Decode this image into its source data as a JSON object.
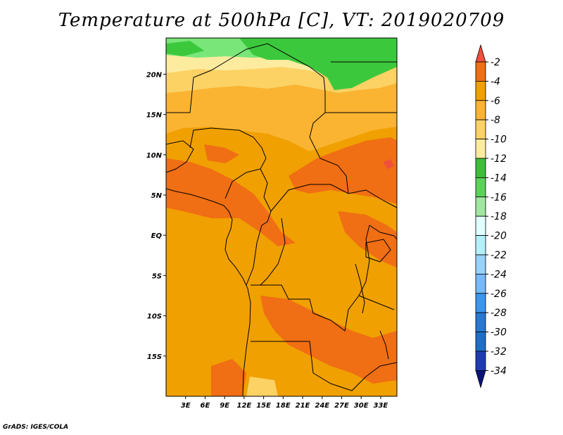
{
  "title": "Temperature at 500hPa [C], VT: 2019020709",
  "footer": "GrADS: IGES/COLA",
  "map": {
    "lat_range": [
      -20,
      24.5
    ],
    "lon_range": [
      0,
      35.5
    ],
    "lat_ticks": [
      {
        "value": 20,
        "label": "20N"
      },
      {
        "value": 15,
        "label": "15N"
      },
      {
        "value": 10,
        "label": "10N"
      },
      {
        "value": 5,
        "label": "5N"
      },
      {
        "value": 0,
        "label": "EQ"
      },
      {
        "value": -5,
        "label": "5S"
      },
      {
        "value": -10,
        "label": "10S"
      },
      {
        "value": -15,
        "label": "15S"
      }
    ],
    "lon_ticks": [
      {
        "value": 3,
        "label": "3E"
      },
      {
        "value": 6,
        "label": "6E"
      },
      {
        "value": 9,
        "label": "9E"
      },
      {
        "value": 12,
        "label": "12E"
      },
      {
        "value": 15,
        "label": "15E"
      },
      {
        "value": 18,
        "label": "18E"
      },
      {
        "value": 21,
        "label": "21E"
      },
      {
        "value": 24,
        "label": "24E"
      },
      {
        "value": 27,
        "label": "27E"
      },
      {
        "value": 30,
        "label": "30E"
      },
      {
        "value": 33,
        "label": "33E"
      }
    ]
  },
  "colorbar": {
    "labels": [
      "-2",
      "-4",
      "-6",
      "-8",
      "-10",
      "-12",
      "-14",
      "-16",
      "-18",
      "-20",
      "-22",
      "-24",
      "-26",
      "-28",
      "-30",
      "-32",
      "-34"
    ],
    "colors": [
      "#f0503c",
      "#f06e14",
      "#f0a000",
      "#fab432",
      "#fcd264",
      "#fdeca0",
      "#3cbe3c",
      "#5ad25a",
      "#a0e6a0",
      "#e1ffff",
      "#b4f0fa",
      "#96d2fa",
      "#78b9fa",
      "#3c96f0",
      "#2878d2",
      "#1e6ec8",
      "#1e3cb4",
      "#0a1478"
    ]
  }
}
